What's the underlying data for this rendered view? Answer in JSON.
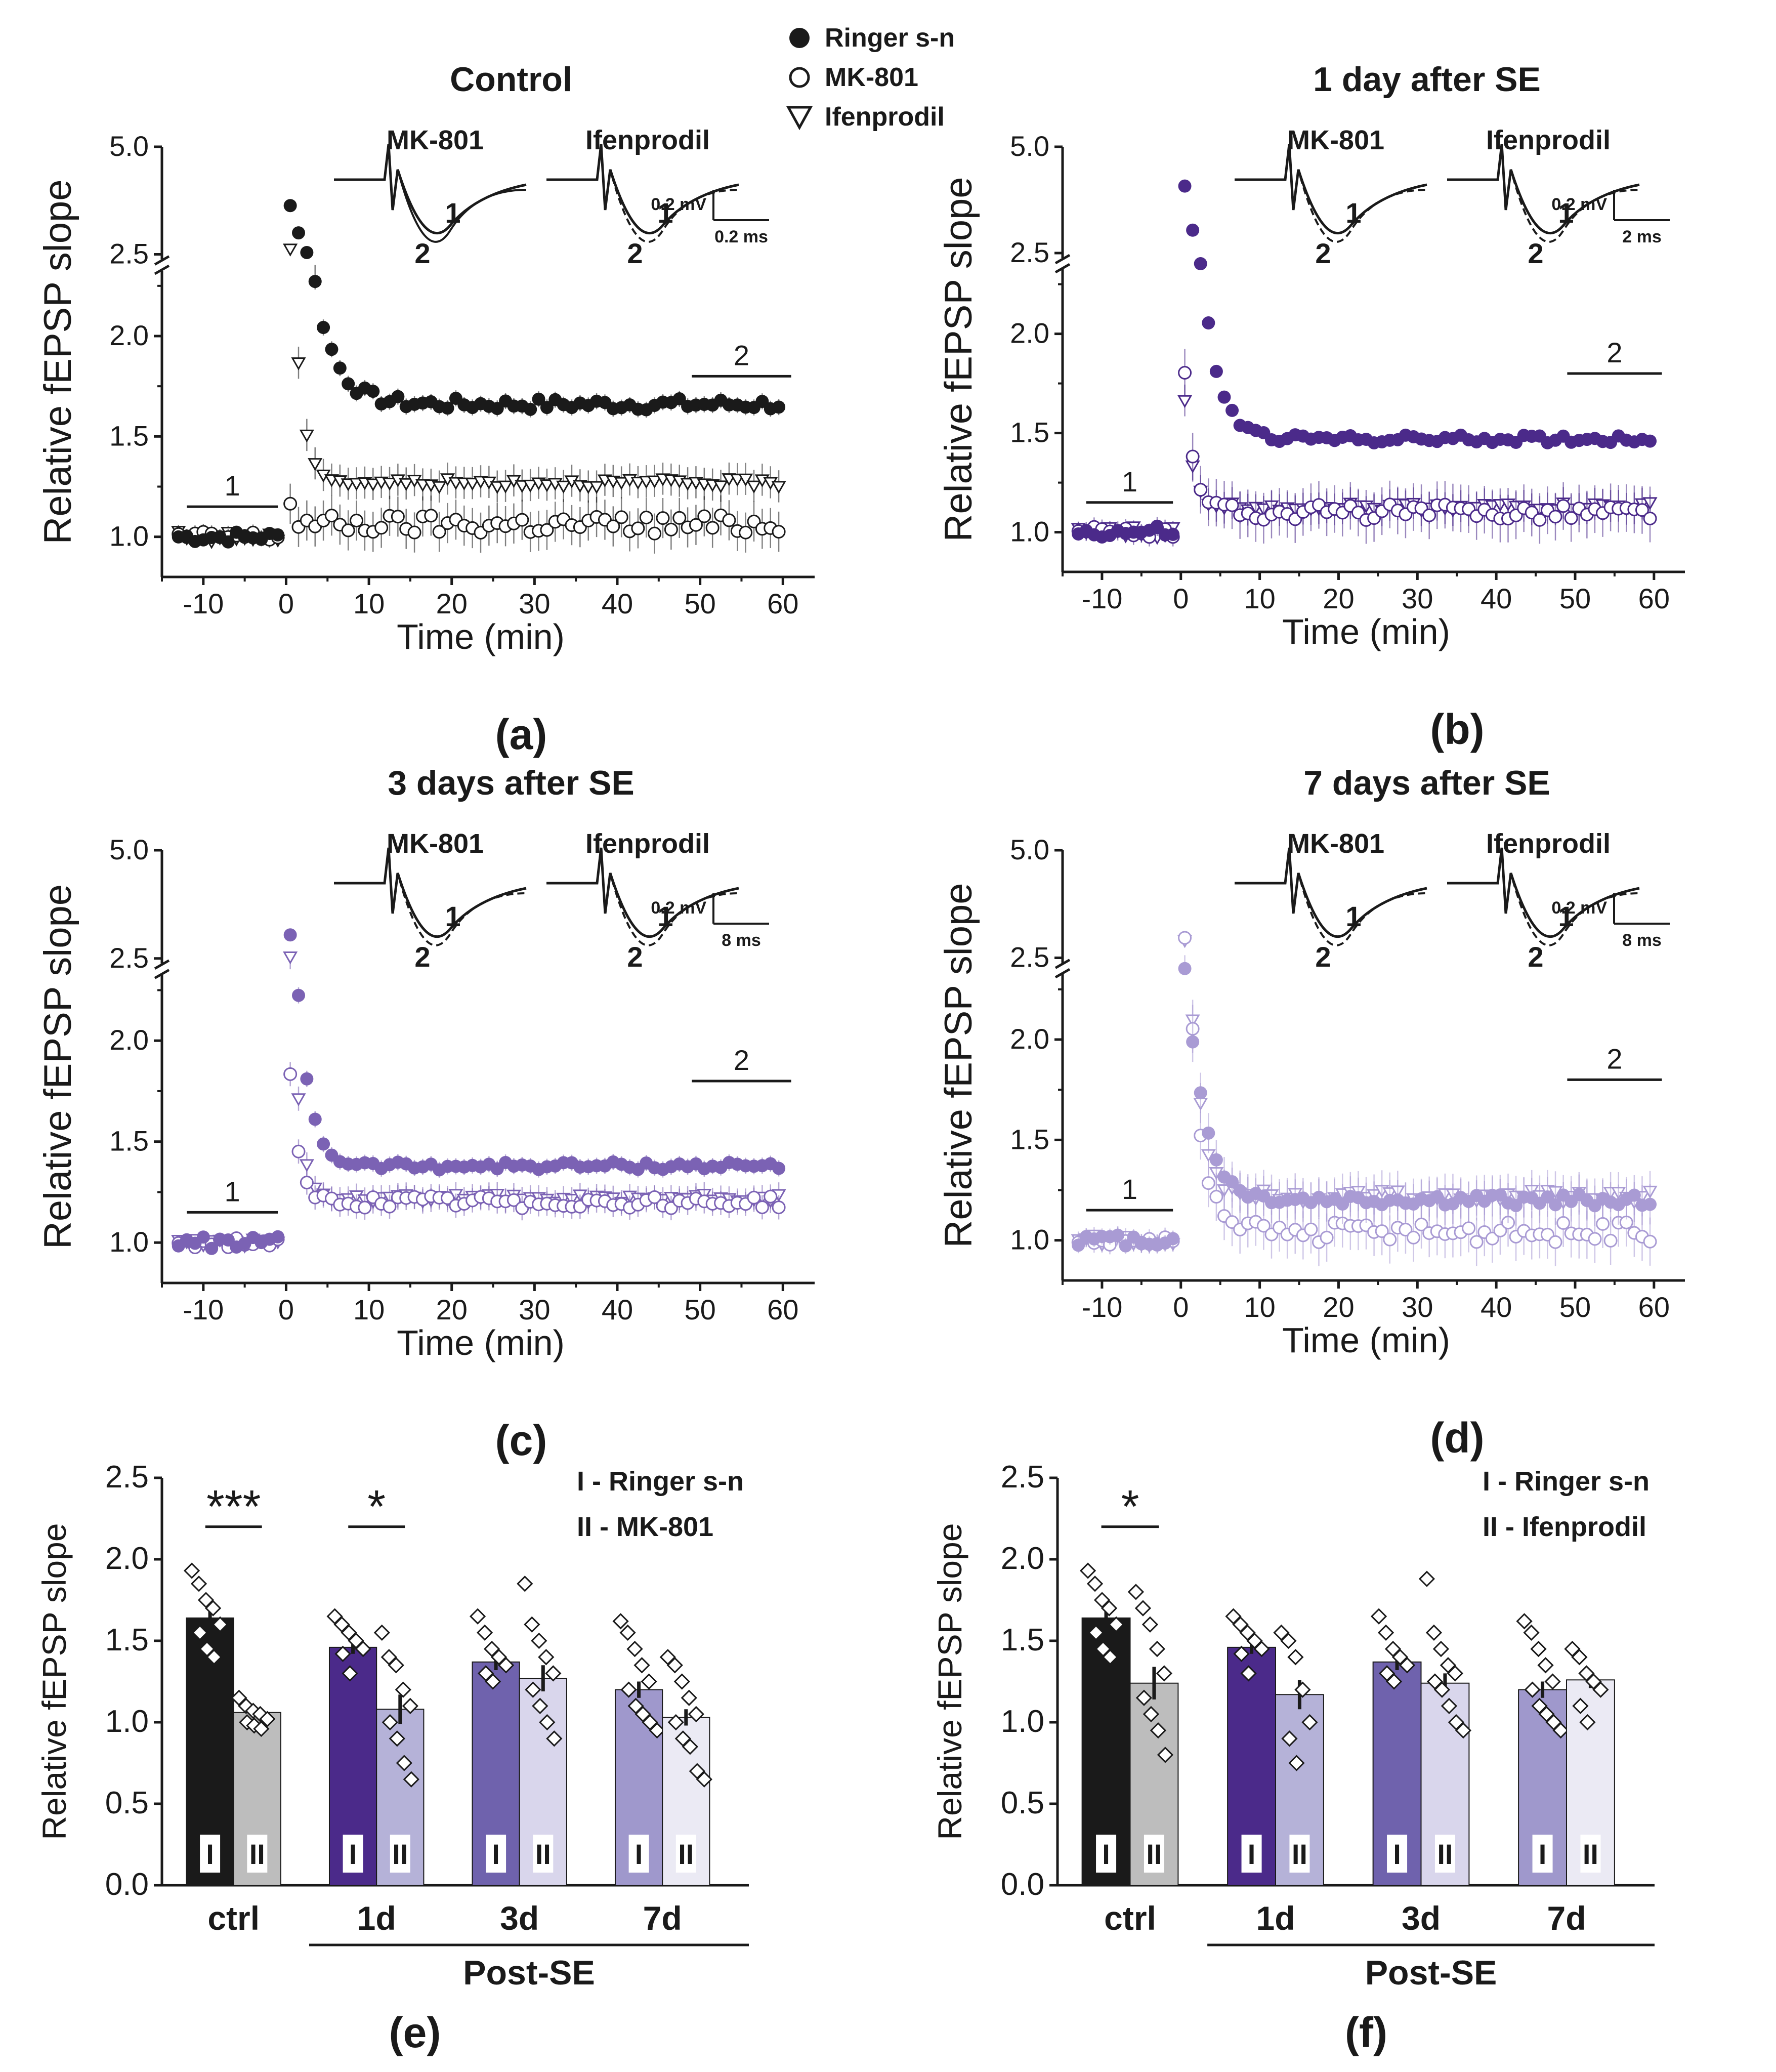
{
  "legend_top": {
    "items": [
      {
        "symbol": "filled-circle",
        "label": "Ringer s-n"
      },
      {
        "symbol": "open-circle",
        "label": "MK-801"
      },
      {
        "symbol": "open-triangle",
        "label": "Ifenprodil"
      }
    ]
  },
  "shared": {
    "ylabel": "Relative fEPSP slope",
    "xlabel": "Time (min)",
    "bar1_label": "1",
    "bar2_label": "2",
    "trace_num_1": "1",
    "trace_num_2": "2",
    "post_se_label": "Post-SE"
  },
  "chart_data": [
    {
      "id": "a",
      "panel_label": "(a)",
      "type": "scatter",
      "title": "Control",
      "xlabel": "Time (min)",
      "ylabel": "Relative fEPSP slope",
      "xlim": [
        -15,
        62
      ],
      "ylim": [
        0.8,
        5.0
      ],
      "y_break": [
        2.3,
        2.5
      ],
      "xticks": [
        "-10",
        "0",
        "10",
        "20",
        "30",
        "40",
        "50",
        "60"
      ],
      "yticks": [
        "1.0",
        "1.5",
        "2.0",
        "2.5",
        "5.0"
      ],
      "color": "#1a1a1a",
      "baseline": {
        "mean": 1.0
      },
      "series": [
        {
          "name": "Ringer s-n",
          "marker": "filled-circle",
          "peak": 4.1,
          "plateau": 1.66,
          "tau": 2.5,
          "noise": 0.03,
          "err": 0.04
        },
        {
          "name": "MK-801",
          "marker": "open-circle",
          "peak": 1.3,
          "plateau": 1.06,
          "tau": 0.6,
          "noise": 0.05,
          "err": 0.1
        },
        {
          "name": "Ifenprodil",
          "marker": "open-triangle",
          "peak": 3.3,
          "plateau": 1.27,
          "tau": 1.2,
          "noise": 0.02,
          "err": 0.08
        }
      ],
      "insets": [
        {
          "label": "MK-801",
          "dashed": false
        },
        {
          "label": "Ifenprodil",
          "dashed": true
        }
      ],
      "scale_bar": {
        "v": "0.2 mV",
        "h": "0.2 ms"
      }
    },
    {
      "id": "b",
      "panel_label": "(b)",
      "type": "scatter",
      "title": "1 day after SE",
      "xlabel": "Time (min)",
      "ylabel": "Relative fEPSP slope",
      "xlim": [
        -15,
        62
      ],
      "ylim": [
        0.8,
        5.0
      ],
      "y_break": [
        2.3,
        2.5
      ],
      "xticks": [
        "-10",
        "0",
        "10",
        "20",
        "30",
        "40",
        "50",
        "60"
      ],
      "yticks": [
        "1.0",
        "1.5",
        "2.0",
        "2.5",
        "5.0"
      ],
      "color": "#4b2a8a",
      "baseline": {
        "mean": 1.0
      },
      "series": [
        {
          "name": "Ringer s-n",
          "marker": "filled-circle",
          "peak": 4.8,
          "plateau": 1.47,
          "tau": 2.0,
          "noise": 0.02,
          "err": 0.03
        },
        {
          "name": "MK-801",
          "marker": "open-circle",
          "peak": 2.2,
          "plateau": 1.1,
          "tau": 1.2,
          "noise": 0.04,
          "err": 0.12
        },
        {
          "name": "Ifenprodil",
          "marker": "open-triangle",
          "peak": 2.0,
          "plateau": 1.13,
          "tau": 1.0,
          "noise": 0.02,
          "err": 0.08
        }
      ],
      "insets": [
        {
          "label": "MK-801",
          "dashed": true
        },
        {
          "label": "Ifenprodil",
          "dashed": true
        }
      ],
      "scale_bar": {
        "v": "0.2 mV",
        "h": "2 ms"
      }
    },
    {
      "id": "c",
      "panel_label": "(c)",
      "type": "scatter",
      "title": "3 days after SE",
      "xlabel": "Time (min)",
      "ylabel": "Relative fEPSP slope",
      "xlim": [
        -15,
        62
      ],
      "ylim": [
        0.8,
        5.0
      ],
      "y_break": [
        2.3,
        2.5
      ],
      "xticks": [
        "-10",
        "0",
        "10",
        "20",
        "30",
        "40",
        "50",
        "60"
      ],
      "yticks": [
        "1.0",
        "1.5",
        "2.0",
        "2.5",
        "5.0"
      ],
      "color": "#7b62b4",
      "baseline": {
        "mean": 1.0
      },
      "series": [
        {
          "name": "Ringer s-n",
          "marker": "filled-circle",
          "peak": 3.7,
          "plateau": 1.38,
          "tau": 1.5,
          "noise": 0.02,
          "err": 0.04
        },
        {
          "name": "MK-801",
          "marker": "open-circle",
          "peak": 2.2,
          "plateau": 1.2,
          "tau": 1.0,
          "noise": 0.03,
          "err": 0.06
        },
        {
          "name": "Ifenprodil",
          "marker": "open-triangle",
          "peak": 3.4,
          "plateau": 1.22,
          "tau": 1.0,
          "noise": 0.02,
          "err": 0.06
        }
      ],
      "insets": [
        {
          "label": "MK-801",
          "dashed": true
        },
        {
          "label": "Ifenprodil",
          "dashed": true
        }
      ],
      "scale_bar": {
        "v": "0.2 mV",
        "h": "8 ms"
      }
    },
    {
      "id": "d",
      "panel_label": "(d)",
      "type": "scatter",
      "title": "7 days after SE",
      "xlabel": "Time (min)",
      "ylabel": "Relative fEPSP slope",
      "xlim": [
        -15,
        62
      ],
      "ylim": [
        0.8,
        5.0
      ],
      "y_break": [
        2.3,
        2.5
      ],
      "xticks": [
        "-10",
        "0",
        "10",
        "20",
        "30",
        "40",
        "50",
        "60"
      ],
      "yticks": [
        "1.0",
        "1.5",
        "2.0",
        "2.5",
        "5.0"
      ],
      "color": "#a99bd4",
      "baseline": {
        "mean": 1.0
      },
      "series": [
        {
          "name": "Ringer s-n",
          "marker": "filled-circle",
          "peak": 2.8,
          "plateau": 1.2,
          "tau": 2.2,
          "noise": 0.03,
          "err": 0.1
        },
        {
          "name": "MK-801",
          "marker": "open-circle",
          "peak": 3.7,
          "plateau": 1.04,
          "tau": 1.5,
          "noise": 0.05,
          "err": 0.12
        },
        {
          "name": "Ifenprodil",
          "marker": "open-triangle",
          "peak": 3.6,
          "plateau": 1.22,
          "tau": 1.5,
          "noise": 0.03,
          "err": 0.1
        }
      ],
      "insets": [
        {
          "label": "MK-801",
          "dashed": true
        },
        {
          "label": "Ifenprodil",
          "dashed": true
        }
      ],
      "scale_bar": {
        "v": "0.2 mV",
        "h": "8 ms"
      }
    },
    {
      "id": "e",
      "panel_label": "(e)",
      "type": "bar",
      "ylabel": "Relative fEPSP slope",
      "ylim": [
        0,
        2.5
      ],
      "yticks": [
        "0.0",
        "0.5",
        "1.0",
        "1.5",
        "2.0",
        "2.5"
      ],
      "categories": [
        "ctrl",
        "1d",
        "3d",
        "7d"
      ],
      "group_label": "Post-SE",
      "legend": [
        "I - Ringer s-n",
        "II - MK-801"
      ],
      "roman": [
        "I",
        "II"
      ],
      "colors": [
        [
          "#1a1a1a",
          "#bdbdbd"
        ],
        [
          "#4b2a8a",
          "#b5b2d8"
        ],
        [
          "#6f62ad",
          "#d9d6ec"
        ],
        [
          "#9f98cc",
          "#ebeaf4"
        ]
      ],
      "series": [
        {
          "name": "I - Ringer s-n",
          "values": [
            1.64,
            1.46,
            1.37,
            1.2
          ],
          "errors": [
            0.07,
            0.04,
            0.05,
            0.05
          ]
        },
        {
          "name": "II - MK-801",
          "values": [
            1.06,
            1.08,
            1.27,
            1.03
          ],
          "errors": [
            0.03,
            0.09,
            0.08,
            0.05
          ]
        }
      ],
      "points": [
        [
          [
            1.93,
            1.85,
            1.75,
            1.7,
            1.6,
            1.55,
            1.45,
            1.4
          ],
          [
            1.15,
            1.1,
            1.07,
            1.05,
            1.02,
            1.0,
            0.98,
            0.96
          ]
        ],
        [
          [
            1.65,
            1.6,
            1.55,
            1.5,
            1.45,
            1.42,
            1.3
          ],
          [
            1.55,
            1.4,
            1.35,
            1.2,
            1.1,
            1.0,
            0.9,
            0.75,
            0.65
          ]
        ],
        [
          [
            1.65,
            1.55,
            1.45,
            1.4,
            1.35,
            1.3,
            1.25
          ],
          [
            1.85,
            1.6,
            1.5,
            1.4,
            1.3,
            1.2,
            1.1,
            1.0,
            0.9
          ]
        ],
        [
          [
            1.62,
            1.55,
            1.45,
            1.35,
            1.25,
            1.2,
            1.1,
            1.05,
            1.0,
            0.95
          ],
          [
            1.4,
            1.35,
            1.25,
            1.15,
            1.05,
            1.0,
            0.9,
            0.85,
            0.7,
            0.65
          ]
        ]
      ],
      "significance": [
        {
          "group": 0,
          "label": "***"
        },
        {
          "group": 1,
          "label": "*"
        }
      ]
    },
    {
      "id": "f",
      "panel_label": "(f)",
      "type": "bar",
      "ylabel": "Relative fEPSP slope",
      "ylim": [
        0,
        2.5
      ],
      "yticks": [
        "0.0",
        "0.5",
        "1.0",
        "1.5",
        "2.0",
        "2.5"
      ],
      "categories": [
        "ctrl",
        "1d",
        "3d",
        "7d"
      ],
      "group_label": "Post-SE",
      "legend": [
        "I - Ringer s-n",
        "II - Ifenprodil"
      ],
      "roman": [
        "I",
        "II"
      ],
      "colors": [
        [
          "#1a1a1a",
          "#bdbdbd"
        ],
        [
          "#4b2a8a",
          "#b5b2d8"
        ],
        [
          "#6f62ad",
          "#d9d6ec"
        ],
        [
          "#9f98cc",
          "#ebeaf4"
        ]
      ],
      "series": [
        {
          "name": "I - Ringer s-n",
          "values": [
            1.64,
            1.46,
            1.37,
            1.2
          ],
          "errors": [
            0.07,
            0.04,
            0.05,
            0.05
          ]
        },
        {
          "name": "II - Ifenprodil",
          "values": [
            1.24,
            1.17,
            1.24,
            1.26
          ],
          "errors": [
            0.1,
            0.09,
            0.06,
            0.05
          ]
        }
      ],
      "points": [
        [
          [
            1.93,
            1.85,
            1.75,
            1.7,
            1.6,
            1.55,
            1.45,
            1.4
          ],
          [
            1.8,
            1.7,
            1.6,
            1.45,
            1.3,
            1.15,
            1.05,
            0.95,
            0.8
          ]
        ],
        [
          [
            1.65,
            1.6,
            1.55,
            1.5,
            1.45,
            1.42,
            1.3
          ],
          [
            1.55,
            1.5,
            1.4,
            1.2,
            1.0,
            0.9,
            0.75
          ]
        ],
        [
          [
            1.65,
            1.55,
            1.45,
            1.4,
            1.35,
            1.3,
            1.25
          ],
          [
            1.88,
            1.55,
            1.45,
            1.35,
            1.3,
            1.25,
            1.2,
            1.1,
            1.0,
            0.95
          ]
        ],
        [
          [
            1.62,
            1.55,
            1.45,
            1.35,
            1.25,
            1.2,
            1.1,
            1.05,
            1.0,
            0.95
          ],
          [
            1.45,
            1.4,
            1.3,
            1.25,
            1.2,
            1.1,
            1.0
          ]
        ]
      ],
      "significance": [
        {
          "group": 0,
          "label": "*"
        }
      ]
    }
  ]
}
